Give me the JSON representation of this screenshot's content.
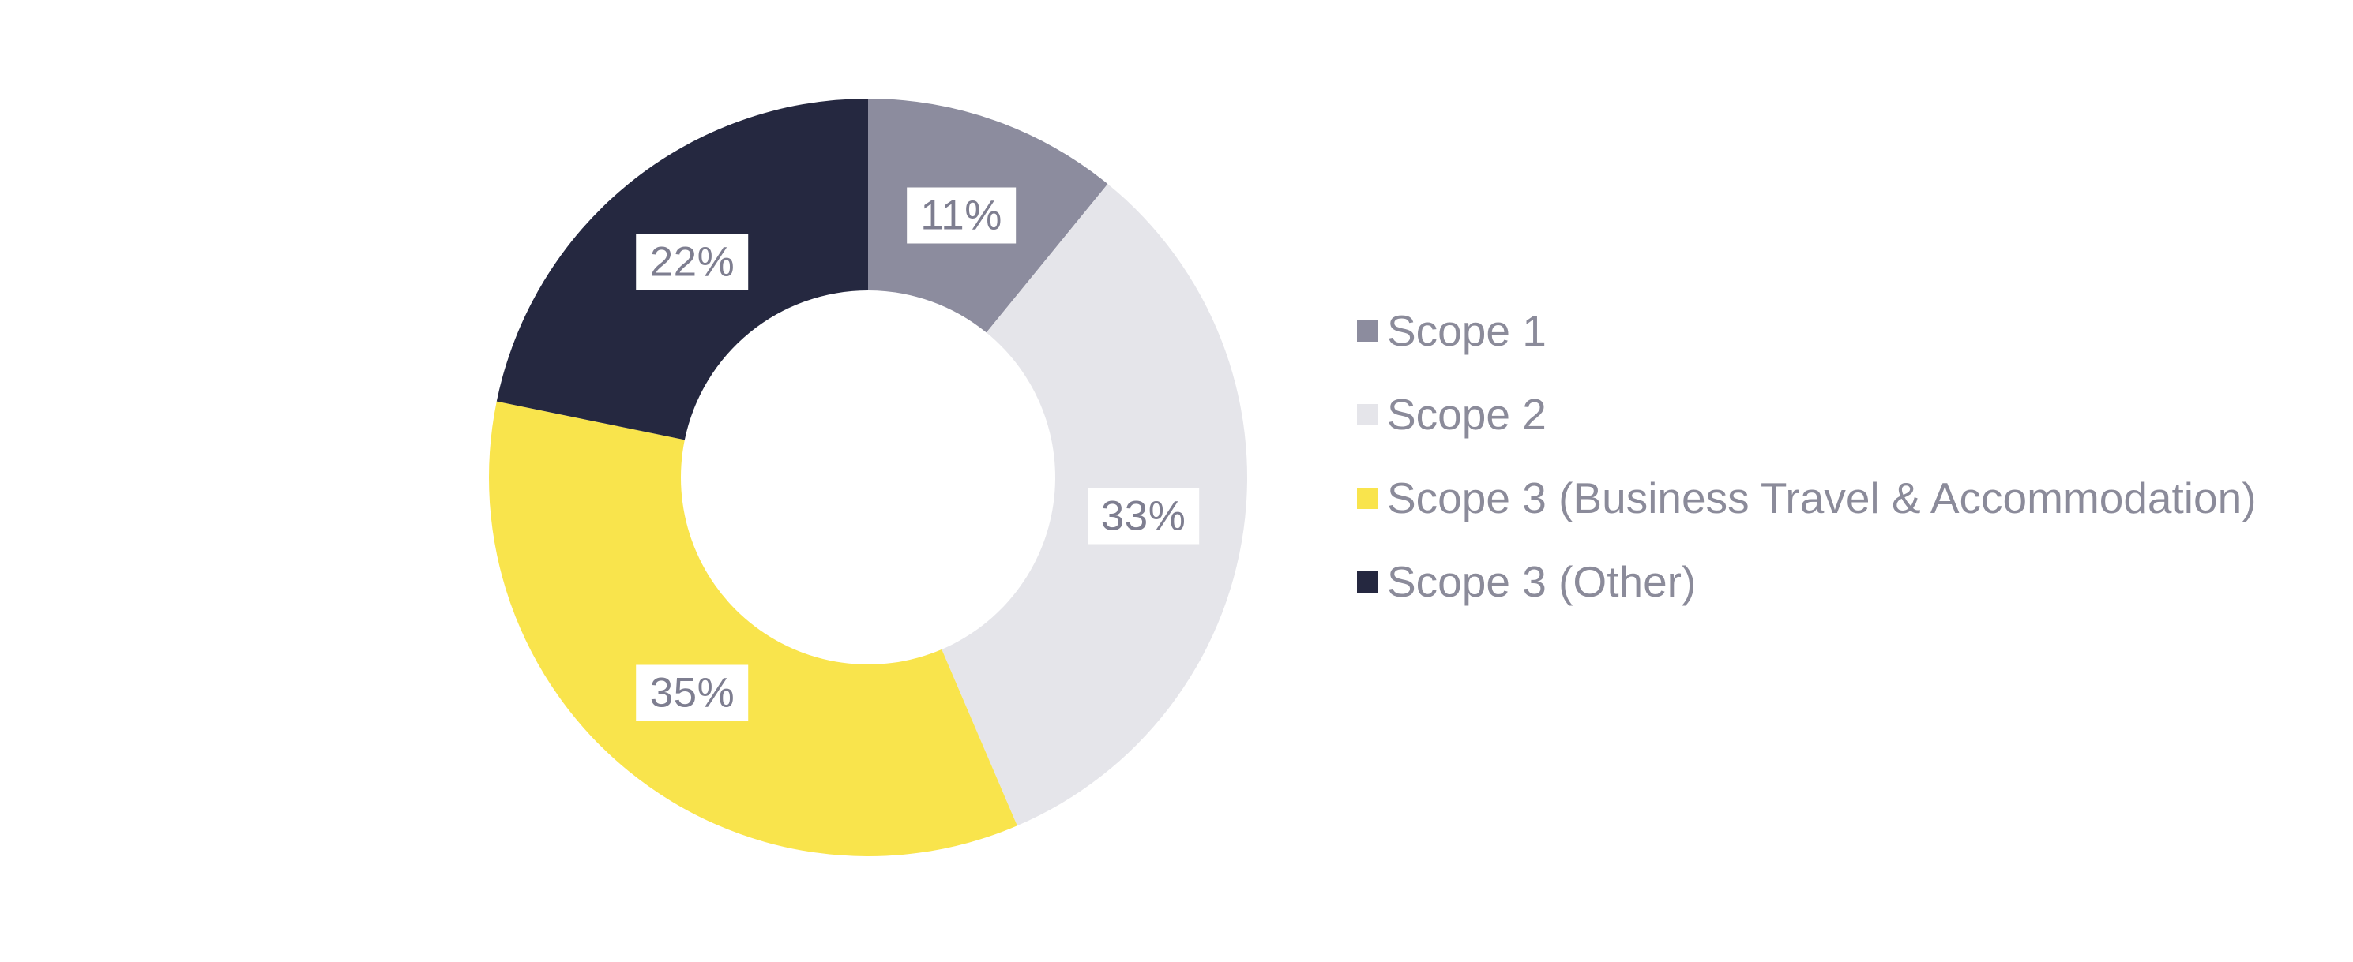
{
  "chart_data": {
    "type": "pie",
    "subtype": "donut",
    "title": "",
    "legend_position": "right",
    "start_angle_deg": 0,
    "direction": "clockwise",
    "inner_radius_ratio": 0.49,
    "label_background": "#FFFFFF",
    "label_text_color": "#7E7E90",
    "legend_text_color": "#8B8B9A",
    "slices": [
      {
        "name": "Scope 1",
        "value_pct": 11,
        "label": "11%",
        "color": "#8C8C9E"
      },
      {
        "name": "Scope 2",
        "value_pct": 33,
        "label": "33%",
        "color": "#E5E5EA"
      },
      {
        "name": "Scope 3 (Business Travel & Accommodation)",
        "value_pct": 35,
        "label": "35%",
        "color": "#F9E44C"
      },
      {
        "name": "Scope 3 (Other)",
        "value_pct": 22,
        "label": "22%",
        "color": "#252840"
      }
    ]
  }
}
